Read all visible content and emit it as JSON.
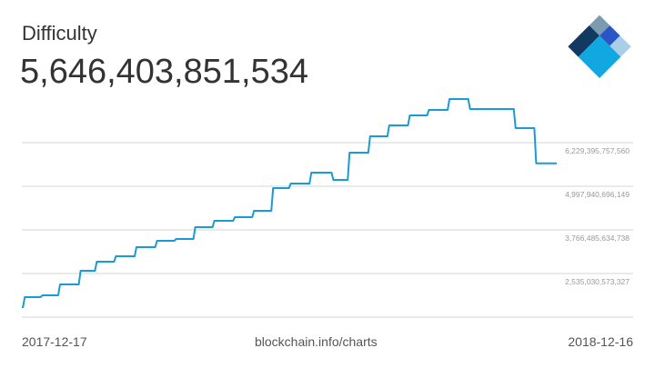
{
  "chart_data": {
    "type": "line",
    "title": "Difficulty",
    "current_value": "5,646,403,851,534",
    "x_unit": "days since 2017-12-17",
    "y_unit": "trillions",
    "x_start_label": "2017-12-17",
    "x_end_label": "2018-12-16",
    "source": "blockchain.info/charts",
    "y_ticks": [
      {
        "value": 2.535030573327,
        "label": "2,535,030,573,327"
      },
      {
        "value": 3.766485634738,
        "label": "3,766,485,634,738"
      },
      {
        "value": 4.997940696149,
        "label": "4,997,940,696,149"
      },
      {
        "value": 6.22939575756,
        "label": "6,229,395,757,560"
      }
    ],
    "ylim": [
      1.3036,
      7.4609
    ],
    "xlim": [
      0,
      364
    ],
    "grid": true,
    "line_color": "#1a9ad6",
    "points": [
      [
        0,
        1.586
      ],
      [
        2,
        1.868
      ],
      [
        14,
        1.919
      ],
      [
        26,
        2.227
      ],
      [
        40,
        2.612
      ],
      [
        51,
        2.869
      ],
      [
        64,
        3.022
      ],
      [
        78,
        3.279
      ],
      [
        92,
        3.459
      ],
      [
        105,
        3.51
      ],
      [
        118,
        3.844
      ],
      [
        131,
        4.023
      ],
      [
        145,
        4.126
      ],
      [
        158,
        4.305
      ],
      [
        171,
        4.947
      ],
      [
        183,
        5.075
      ],
      [
        197,
        5.383
      ],
      [
        212,
        5.178
      ],
      [
        223,
        5.947
      ],
      [
        237,
        6.409
      ],
      [
        250,
        6.717
      ],
      [
        264,
        6.999
      ],
      [
        277,
        7.153
      ],
      [
        291,
        7.461
      ],
      [
        305,
        7.179
      ],
      [
        336,
        6.64
      ],
      [
        350,
        5.646
      ],
      [
        364,
        5.646
      ]
    ]
  }
}
